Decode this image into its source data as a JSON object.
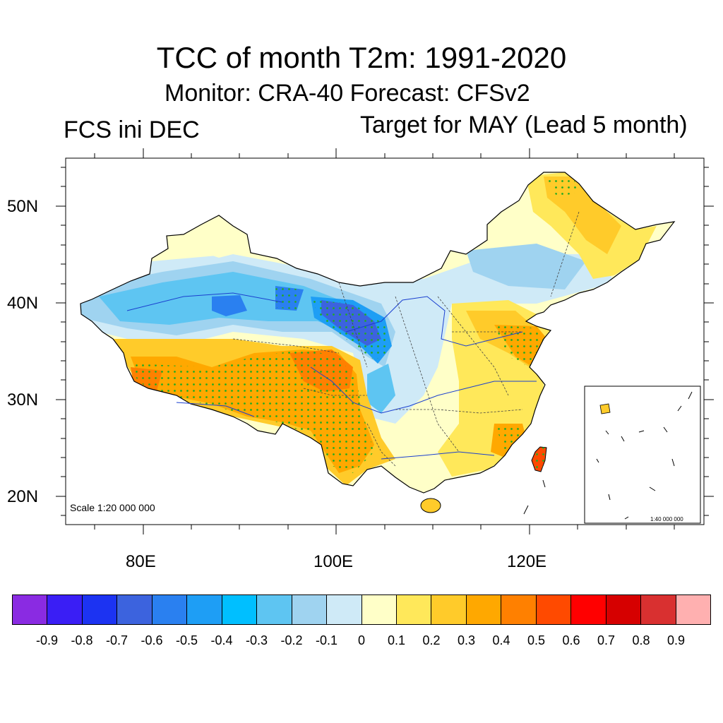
{
  "title": "TCC of month T2m: 1991-2020",
  "subtitle": "Monitor: CRA-40   Forecast: CFSv2",
  "left_label": "FCS ini DEC",
  "right_label": "Target for MAY (Lead 5 month)",
  "y_axis_labels": [
    "50N",
    "40N",
    "30N",
    "20N"
  ],
  "x_axis_labels": [
    "80E",
    "100E",
    "120E"
  ],
  "scale_label": "Scale 1:20 000 000",
  "inset_scale_label": "1:40 000 000",
  "colorbar": {
    "colors": [
      "#8a2be2",
      "#3a1ef5",
      "#1c33f2",
      "#3c63de",
      "#2a80f0",
      "#1e9ef5",
      "#00bfff",
      "#5ec5f2",
      "#9fd3f0",
      "#cfeaf7",
      "#ffffc8",
      "#ffe85a",
      "#ffcb2a",
      "#ffa800",
      "#ff8000",
      "#ff4a00",
      "#ff0000",
      "#d60000",
      "#d93030",
      "#ffb0b0"
    ],
    "labels": [
      "-0.9",
      "-0.8",
      "-0.7",
      "-0.6",
      "-0.5",
      "-0.4",
      "-0.3",
      "-0.2",
      "-0.1",
      "0",
      "0.1",
      "0.2",
      "0.3",
      "0.4",
      "0.5",
      "0.6",
      "0.7",
      "0.8",
      "0.9"
    ]
  },
  "map": {
    "variable": "TCC",
    "lon_range": [
      72,
      138
    ],
    "lat_range": [
      17,
      55
    ],
    "regions": [
      {
        "name": "northwest-negative",
        "tcc": -0.3
      },
      {
        "name": "qaidam-strong-negative",
        "tcc": -0.5
      },
      {
        "name": "north-china-weak-negative",
        "tcc": -0.1
      },
      {
        "name": "tibet-positive",
        "tcc": 0.4
      },
      {
        "name": "southwest-positive",
        "tcc": 0.4
      },
      {
        "name": "northeast-positive",
        "tcc": 0.3
      },
      {
        "name": "east-coast-positive",
        "tcc": 0.3
      },
      {
        "name": "taiwan-strong-positive",
        "tcc": 0.6
      },
      {
        "name": "hainan-positive",
        "tcc": 0.2
      }
    ]
  }
}
